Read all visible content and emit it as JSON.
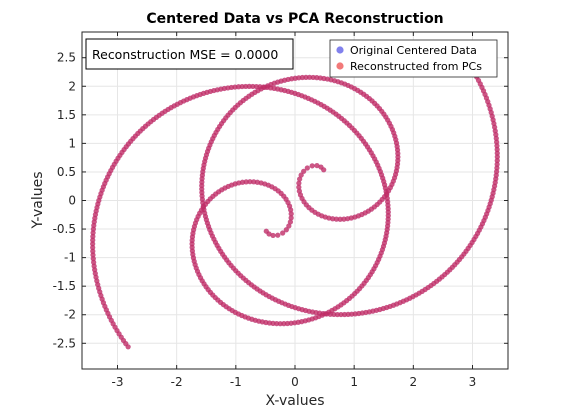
{
  "chart_data": {
    "type": "scatter",
    "title": "Centered Data vs PCA Reconstruction",
    "xlabel": "X-values",
    "ylabel": "Y-values",
    "xlim": [
      -3.6,
      3.6
    ],
    "ylim": [
      -2.95,
      2.95
    ],
    "xticks": [
      "-3",
      "-2",
      "-1",
      "0",
      "1",
      "2",
      "3"
    ],
    "xtick_values": [
      -3,
      -2,
      -1,
      0,
      1,
      2,
      3
    ],
    "yticks": [
      "-2.5",
      "-2",
      "-1.5",
      "-1",
      "-0.5",
      "0",
      "0.5",
      "1",
      "1.5",
      "2",
      "2.5"
    ],
    "ytick_values": [
      -2.5,
      -2,
      -1.5,
      -1,
      -0.5,
      0,
      0.5,
      1,
      1.5,
      2,
      2.5
    ],
    "grid": true,
    "legend_position": "top-right",
    "annotation": "Reconstruction MSE = 0.0000",
    "series": [
      {
        "name": "Original Centered Data",
        "color": "#6b6bea"
      },
      {
        "name": "Reconstructed from PCs",
        "color": "#f06262"
      }
    ],
    "spirals": [
      {
        "center": [
          0.5,
          0.5
        ],
        "b": 0.27,
        "theta_range": [
          0,
          11.5
        ],
        "rotation": 1.8
      },
      {
        "center": [
          -0.5,
          -0.5
        ],
        "b": 0.27,
        "theta_range": [
          0,
          11.5
        ],
        "rotation": 4.94
      }
    ]
  }
}
